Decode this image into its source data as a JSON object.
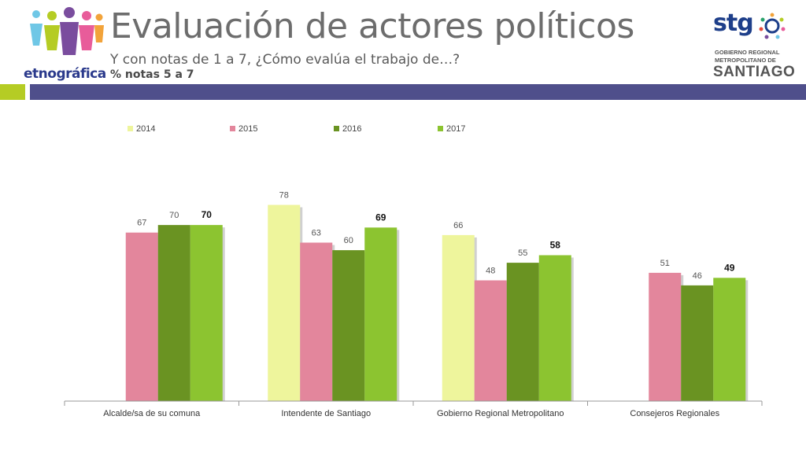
{
  "header": {
    "title": "Evaluación de actores políticos",
    "subtitle": "Y con notas de 1 a 7, ¿Cómo evalúa el trabajo de…?",
    "subtitle2": "% notas 5 a 7",
    "logo_left_text": "etnográfica",
    "logo_right": {
      "brand": "stg",
      "line1": "GOBIERNO REGIONAL",
      "line2": "METROPOLITANO DE",
      "line3": "SANTIAGO"
    }
  },
  "colors": {
    "band_green": "#b5cc24",
    "band_blue": "#4f4f8b"
  },
  "chart_data": {
    "type": "bar",
    "categories": [
      "Alcalde/sa de su comuna",
      "Intendente de Santiago",
      "Gobierno Regional Metropolitano",
      "Consejeros Regionales"
    ],
    "series": [
      {
        "name": "2014",
        "color": "#eef59c",
        "values": [
          null,
          78,
          66,
          null
        ]
      },
      {
        "name": "2015",
        "color": "#e3869c",
        "values": [
          67,
          63,
          48,
          51
        ]
      },
      {
        "name": "2016",
        "color": "#6a9322",
        "values": [
          70,
          60,
          55,
          46
        ]
      },
      {
        "name": "2017",
        "color": "#8cc430",
        "values": [
          70,
          69,
          58,
          49
        ]
      }
    ],
    "bold_series": "2017",
    "ylim": [
      0,
      90
    ],
    "grid": false,
    "legend_position": "top"
  }
}
